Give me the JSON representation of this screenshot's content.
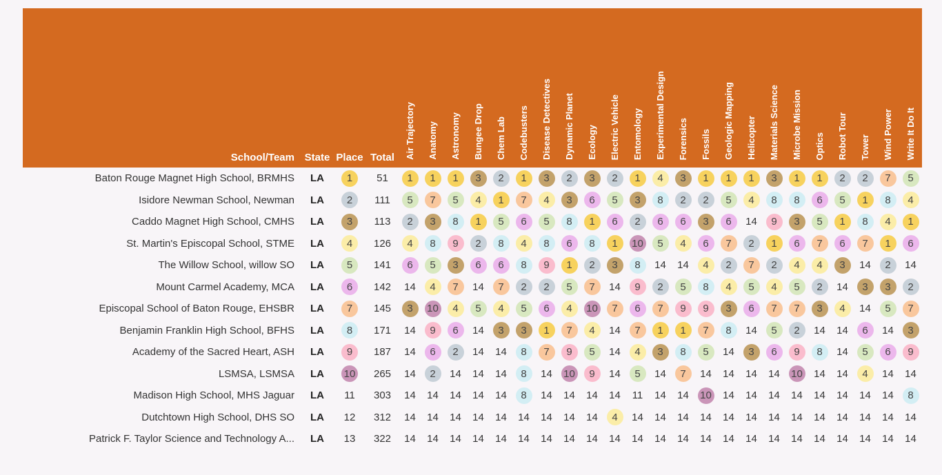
{
  "header": {
    "background_color": "#d46a20",
    "fixed_columns": {
      "school": "School/Team",
      "state": "State",
      "place": "Place",
      "total": "Total"
    },
    "events": [
      "Air Trajectory",
      "Anatomy",
      "Astronomy",
      "Bungee Drop",
      "Chem Lab",
      "Codebusters",
      "Disease Detectives",
      "Dynamic Planet",
      "Ecology",
      "Electric Vehicle",
      "Entomology",
      "Experimental Design",
      "Forensics",
      "Fossils",
      "Geologic Mapping",
      "Helicopter",
      "Materials Science",
      "Microbe Mission",
      "Optics",
      "Robot Tour",
      "Tower",
      "Wind Power",
      "Write It Do It"
    ]
  },
  "score_colors": {
    "1": "#f7d25e",
    "2": "#c8d1d9",
    "3": "#c3a26b",
    "4": "#fbeda8",
    "5": "#d8e8c0",
    "6": "#ecb7ec",
    "7": "#f9c79d",
    "8": "#d3eef4",
    "9": "#fabccd",
    "10": "#ca95b8"
  },
  "page_background": "#f8f5f8",
  "rows": [
    {
      "school": "Baton Rouge Magnet High School, BRMHS",
      "state": "LA",
      "place": 1,
      "total": 51,
      "scores": [
        1,
        1,
        1,
        3,
        2,
        1,
        3,
        2,
        3,
        2,
        1,
        4,
        3,
        1,
        1,
        1,
        3,
        1,
        1,
        2,
        2,
        7,
        5
      ]
    },
    {
      "school": "Isidore Newman School, Newman",
      "state": "LA",
      "place": 2,
      "total": 111,
      "scores": [
        5,
        7,
        5,
        4,
        1,
        7,
        4,
        3,
        6,
        5,
        3,
        8,
        2,
        2,
        5,
        4,
        8,
        8,
        6,
        5,
        1,
        8,
        4
      ]
    },
    {
      "school": "Caddo Magnet High School, CMHS",
      "state": "LA",
      "place": 3,
      "total": 113,
      "scores": [
        2,
        3,
        8,
        1,
        5,
        6,
        5,
        8,
        1,
        6,
        2,
        6,
        6,
        3,
        6,
        14,
        9,
        3,
        5,
        1,
        8,
        4,
        1
      ]
    },
    {
      "school": "St. Martin's Episcopal School, STME",
      "state": "LA",
      "place": 4,
      "total": 126,
      "scores": [
        4,
        8,
        9,
        2,
        8,
        4,
        8,
        6,
        8,
        1,
        10,
        5,
        4,
        6,
        7,
        2,
        1,
        6,
        7,
        6,
        7,
        1,
        6
      ]
    },
    {
      "school": "The Willow School, willow SO",
      "state": "LA",
      "place": 5,
      "total": 141,
      "scores": [
        6,
        5,
        3,
        6,
        6,
        8,
        9,
        1,
        2,
        3,
        8,
        14,
        14,
        4,
        2,
        7,
        2,
        4,
        4,
        3,
        14,
        2,
        14
      ]
    },
    {
      "school": "Mount Carmel Academy, MCA",
      "state": "LA",
      "place": 6,
      "total": 142,
      "scores": [
        14,
        4,
        7,
        14,
        7,
        2,
        2,
        5,
        7,
        14,
        9,
        2,
        5,
        8,
        4,
        5,
        4,
        5,
        2,
        14,
        3,
        3,
        2
      ]
    },
    {
      "school": "Episcopal School of Baton Rouge, EHSBR",
      "state": "LA",
      "place": 7,
      "total": 145,
      "scores": [
        3,
        10,
        4,
        5,
        4,
        5,
        6,
        4,
        10,
        7,
        6,
        7,
        9,
        9,
        3,
        6,
        7,
        7,
        3,
        4,
        14,
        5,
        7
      ]
    },
    {
      "school": "Benjamin Franklin High School, BFHS",
      "state": "LA",
      "place": 8,
      "total": 171,
      "scores": [
        14,
        9,
        6,
        14,
        3,
        3,
        1,
        7,
        4,
        14,
        7,
        1,
        1,
        7,
        8,
        14,
        5,
        2,
        14,
        14,
        6,
        14,
        3
      ]
    },
    {
      "school": "Academy of the Sacred Heart, ASH",
      "state": "LA",
      "place": 9,
      "total": 187,
      "scores": [
        14,
        6,
        2,
        14,
        14,
        8,
        7,
        9,
        5,
        14,
        4,
        3,
        8,
        5,
        14,
        3,
        6,
        9,
        8,
        14,
        5,
        6,
        9
      ]
    },
    {
      "school": "LSMSA, LSMSA",
      "state": "LA",
      "place": 10,
      "total": 265,
      "scores": [
        14,
        2,
        14,
        14,
        14,
        8,
        14,
        10,
        9,
        14,
        5,
        14,
        7,
        14,
        14,
        14,
        14,
        10,
        14,
        14,
        4,
        14,
        14
      ]
    },
    {
      "school": "Madison High School, MHS Jaguar",
      "state": "LA",
      "place": 11,
      "total": 303,
      "scores": [
        14,
        14,
        14,
        14,
        14,
        8,
        14,
        14,
        14,
        14,
        11,
        14,
        14,
        10,
        14,
        14,
        14,
        14,
        14,
        14,
        14,
        14,
        8
      ]
    },
    {
      "school": "Dutchtown High School, DHS SO",
      "state": "LA",
      "place": 12,
      "total": 312,
      "scores": [
        14,
        14,
        14,
        14,
        14,
        14,
        14,
        14,
        14,
        4,
        14,
        14,
        14,
        14,
        14,
        14,
        14,
        14,
        14,
        14,
        14,
        14,
        14
      ]
    },
    {
      "school": "Patrick F. Taylor Science and Technology A...",
      "state": "LA",
      "place": 13,
      "total": 322,
      "scores": [
        14,
        14,
        14,
        14,
        14,
        14,
        14,
        14,
        14,
        14,
        14,
        14,
        14,
        14,
        14,
        14,
        14,
        14,
        14,
        14,
        14,
        14,
        14
      ]
    }
  ]
}
